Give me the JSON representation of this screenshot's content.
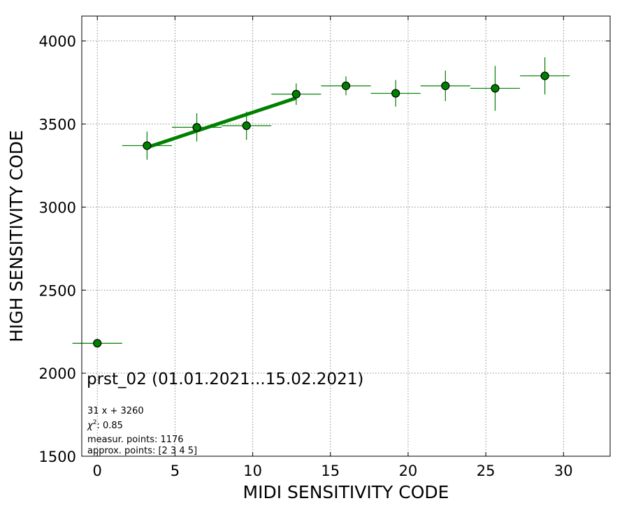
{
  "chart_data": {
    "type": "scatter",
    "xlabel": "MIDI SENSITIVITY CODE",
    "ylabel": "HIGH SENSITIVITY CODE",
    "xlim": [
      -1,
      33
    ],
    "ylim": [
      1500,
      4150
    ],
    "x_ticks": [
      0,
      5,
      10,
      15,
      20,
      25,
      30
    ],
    "y_ticks": [
      1500,
      2000,
      2500,
      3000,
      3500,
      4000
    ],
    "grid": true,
    "series": [
      {
        "points": [
          {
            "x": 0.0,
            "y": 2180,
            "xerr": 1.6,
            "yerr": 0
          },
          {
            "x": 3.2,
            "y": 3370,
            "xerr": 1.6,
            "yerr": 85
          },
          {
            "x": 6.4,
            "y": 3480,
            "xerr": 1.6,
            "yerr": 85
          },
          {
            "x": 9.6,
            "y": 3490,
            "xerr": 1.6,
            "yerr": 85
          },
          {
            "x": 12.8,
            "y": 3680,
            "xerr": 1.6,
            "yerr": 65
          },
          {
            "x": 16.0,
            "y": 3730,
            "xerr": 1.6,
            "yerr": 57
          },
          {
            "x": 19.2,
            "y": 3685,
            "xerr": 1.6,
            "yerr": 80
          },
          {
            "x": 22.4,
            "y": 3730,
            "xerr": 1.6,
            "yerr": 92
          },
          {
            "x": 25.6,
            "y": 3715,
            "xerr": 1.6,
            "yerr": 135
          },
          {
            "x": 28.8,
            "y": 3790,
            "xerr": 1.6,
            "yerr": 112
          }
        ],
        "color": "#008000"
      }
    ],
    "fit": {
      "slope": 31,
      "intercept": 3260,
      "x_range": [
        3.2,
        12.8
      ],
      "color": "#008000"
    },
    "annotations": {
      "title": "prst_02 (01.01.2021...15.02.2021)",
      "fit_label": "31 x + 3260",
      "chi2_prefix": "χ",
      "chi2_sup": "2",
      "chi2_value": ": 0.85",
      "measur_points": "measur. points: 1176",
      "approx_points": "approx. points: [2 3 4 5]"
    }
  }
}
